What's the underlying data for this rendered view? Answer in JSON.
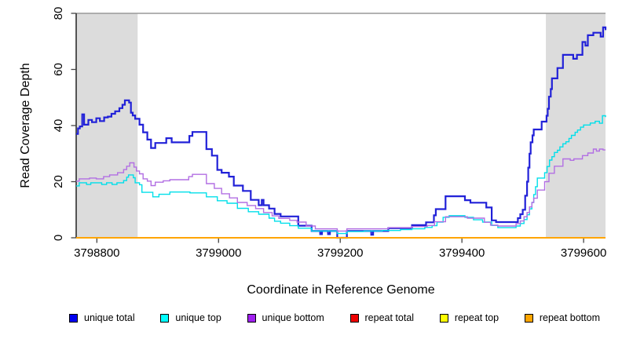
{
  "chart_data": {
    "type": "line",
    "step": true,
    "title": "",
    "xlabel": "Coordinate in Reference Genome",
    "ylabel": "Read Coverage Depth",
    "xlim": [
      3798766,
      3799636
    ],
    "ylim": [
      0,
      80
    ],
    "x_ticks": [
      "3798800",
      "3799000",
      "3799200",
      "3799400",
      "3799600"
    ],
    "x_tick_values": [
      3798800,
      3799000,
      3799200,
      3799400,
      3799600
    ],
    "y_ticks": [
      "0",
      "20",
      "40",
      "60",
      "80"
    ],
    "y_tick_values": [
      0,
      20,
      40,
      60,
      80
    ],
    "grid": false,
    "legend_position": "bottom",
    "shade_color": "#dcdcdc",
    "top_border_color": "#999999",
    "axis_color": "#000000",
    "shaded_regions": [
      {
        "x0": 3798766,
        "x1": 3798867
      },
      {
        "x0": 3799538,
        "x1": 3799636
      }
    ],
    "series": [
      {
        "name": "unique total",
        "color": "#2121d8",
        "legend_color": "#0000f0",
        "width": 2.2,
        "points": [
          [
            3798766,
            37
          ],
          [
            3798769,
            39
          ],
          [
            3798772,
            39.7
          ],
          [
            3798776,
            44
          ],
          [
            3798779,
            40.3
          ],
          [
            3798786,
            42
          ],
          [
            3798792,
            41.2
          ],
          [
            3798799,
            42.6
          ],
          [
            3798805,
            41.6
          ],
          [
            3798812,
            42.9
          ],
          [
            3798818,
            43.2
          ],
          [
            3798824,
            44.2
          ],
          [
            3798830,
            45.1
          ],
          [
            3798837,
            46.2
          ],
          [
            3798842,
            47.4
          ],
          [
            3798846,
            49
          ],
          [
            3798853,
            48.2
          ],
          [
            3798856,
            44.6
          ],
          [
            3798859,
            43.6
          ],
          [
            3798863,
            42.4
          ],
          [
            3798870,
            40.3
          ],
          [
            3798876,
            37.6
          ],
          [
            3798883,
            35
          ],
          [
            3798889,
            32
          ],
          [
            3798896,
            33.8
          ],
          [
            3798914,
            35.5
          ],
          [
            3798923,
            34
          ],
          [
            3798952,
            36.3
          ],
          [
            3798957,
            37.7
          ],
          [
            3798980,
            31.6
          ],
          [
            3798989,
            29.3
          ],
          [
            3798998,
            24.2
          ],
          [
            3799005,
            23.2
          ],
          [
            3799017,
            21.8
          ],
          [
            3799025,
            18.6
          ],
          [
            3799040,
            16.7
          ],
          [
            3799053,
            13.5
          ],
          [
            3799066,
            11.6
          ],
          [
            3799071,
            13.5
          ],
          [
            3799074,
            11.6
          ],
          [
            3799083,
            10.4
          ],
          [
            3799092,
            8.5
          ],
          [
            3799102,
            7.6
          ],
          [
            3799131,
            4.3
          ],
          [
            3799153,
            2.4
          ],
          [
            3799167,
            1.3
          ],
          [
            3799170,
            2.4
          ],
          [
            3799180,
            1.3
          ],
          [
            3799183,
            2.4
          ],
          [
            3799195,
            0
          ],
          [
            3799211,
            2.4
          ],
          [
            3799251,
            1.1
          ],
          [
            3799254,
            2.4
          ],
          [
            3799279,
            3.4
          ],
          [
            3799318,
            4.5
          ],
          [
            3799341,
            5.5
          ],
          [
            3799354,
            8
          ],
          [
            3799357,
            10.2
          ],
          [
            3799373,
            14.8
          ],
          [
            3799405,
            13.4
          ],
          [
            3799414,
            12.5
          ],
          [
            3799440,
            10.8
          ],
          [
            3799449,
            6.2
          ],
          [
            3799456,
            5.6
          ],
          [
            3799492,
            7
          ],
          [
            3799496,
            8.4
          ],
          [
            3799500,
            10
          ],
          [
            3799504,
            15
          ],
          [
            3799507,
            20
          ],
          [
            3799509,
            25
          ],
          [
            3799511,
            30
          ],
          [
            3799513,
            34
          ],
          [
            3799516,
            36.5
          ],
          [
            3799518,
            38.6
          ],
          [
            3799531,
            41.4
          ],
          [
            3799539,
            43.5
          ],
          [
            3799541,
            46
          ],
          [
            3799543,
            50.3
          ],
          [
            3799546,
            53
          ],
          [
            3799548,
            56.8
          ],
          [
            3799557,
            60.5
          ],
          [
            3799566,
            65.2
          ],
          [
            3799583,
            63.8
          ],
          [
            3799589,
            65.2
          ],
          [
            3799598,
            69.8
          ],
          [
            3799603,
            68.5
          ],
          [
            3799607,
            72.2
          ],
          [
            3799616,
            73.1
          ],
          [
            3799628,
            71.7
          ],
          [
            3799632,
            75
          ],
          [
            3799636,
            74
          ]
        ]
      },
      {
        "name": "unique top",
        "color": "#00dfea",
        "legend_color": "#00ffff",
        "width": 1.4,
        "points": [
          [
            3798766,
            18.5
          ],
          [
            3798771,
            19.6
          ],
          [
            3798783,
            19
          ],
          [
            3798790,
            19.6
          ],
          [
            3798808,
            19
          ],
          [
            3798816,
            19.6
          ],
          [
            3798825,
            19
          ],
          [
            3798833,
            19.6
          ],
          [
            3798844,
            20.4
          ],
          [
            3798849,
            21.6
          ],
          [
            3798852,
            22.4
          ],
          [
            3798860,
            21.4
          ],
          [
            3798863,
            19.6
          ],
          [
            3798870,
            18.9
          ],
          [
            3798874,
            16.2
          ],
          [
            3798892,
            14.6
          ],
          [
            3798902,
            15.5
          ],
          [
            3798920,
            16.3
          ],
          [
            3798953,
            16
          ],
          [
            3798980,
            14.6
          ],
          [
            3798998,
            13.2
          ],
          [
            3799014,
            12.3
          ],
          [
            3799031,
            10.5
          ],
          [
            3799049,
            9.3
          ],
          [
            3799066,
            8.4
          ],
          [
            3799083,
            7
          ],
          [
            3799092,
            5.9
          ],
          [
            3799102,
            5.2
          ],
          [
            3799117,
            4.3
          ],
          [
            3799131,
            3.4
          ],
          [
            3799153,
            2.4
          ],
          [
            3799195,
            1.5
          ],
          [
            3799211,
            2.2
          ],
          [
            3799239,
            2.4
          ],
          [
            3799269,
            2.6
          ],
          [
            3799299,
            2.9
          ],
          [
            3799318,
            3.2
          ],
          [
            3799339,
            3.7
          ],
          [
            3799351,
            4.3
          ],
          [
            3799359,
            5.6
          ],
          [
            3799369,
            7.3
          ],
          [
            3799379,
            7.9
          ],
          [
            3799405,
            7.3
          ],
          [
            3799419,
            6.4
          ],
          [
            3799434,
            5.6
          ],
          [
            3799449,
            4.4
          ],
          [
            3799459,
            3.6
          ],
          [
            3799489,
            4.2
          ],
          [
            3799496,
            5.1
          ],
          [
            3799502,
            6.5
          ],
          [
            3799507,
            8.2
          ],
          [
            3799511,
            10.3
          ],
          [
            3799515,
            12.6
          ],
          [
            3799518,
            15.4
          ],
          [
            3799521,
            18.2
          ],
          [
            3799524,
            21.3
          ],
          [
            3799536,
            23.2
          ],
          [
            3799540,
            25.4
          ],
          [
            3799544,
            27.7
          ],
          [
            3799548,
            28.9
          ],
          [
            3799552,
            30.4
          ],
          [
            3799557,
            31.2
          ],
          [
            3799561,
            32.4
          ],
          [
            3799566,
            33.5
          ],
          [
            3799571,
            34.2
          ],
          [
            3799576,
            35.4
          ],
          [
            3799580,
            36.5
          ],
          [
            3799586,
            37.6
          ],
          [
            3799590,
            38.4
          ],
          [
            3799595,
            39.4
          ],
          [
            3799600,
            40.2
          ],
          [
            3799611,
            40.9
          ],
          [
            3799619,
            41.5
          ],
          [
            3799626,
            40.8
          ],
          [
            3799631,
            43.5
          ],
          [
            3799636,
            43
          ]
        ]
      },
      {
        "name": "unique bottom",
        "color": "#b26fe3",
        "legend_color": "#a020f0",
        "width": 1.4,
        "points": [
          [
            3798766,
            20.2
          ],
          [
            3798771,
            21
          ],
          [
            3798788,
            21.3
          ],
          [
            3798799,
            21
          ],
          [
            3798811,
            21.8
          ],
          [
            3798821,
            22.4
          ],
          [
            3798834,
            23.2
          ],
          [
            3798844,
            24.3
          ],
          [
            3798849,
            25.5
          ],
          [
            3798854,
            26.7
          ],
          [
            3798861,
            25.2
          ],
          [
            3798865,
            23.8
          ],
          [
            3798870,
            22.8
          ],
          [
            3798876,
            21
          ],
          [
            3798883,
            20.2
          ],
          [
            3798889,
            18.6
          ],
          [
            3798896,
            19.8
          ],
          [
            3798909,
            20.3
          ],
          [
            3798920,
            20.7
          ],
          [
            3798951,
            21.8
          ],
          [
            3798957,
            22.6
          ],
          [
            3798980,
            19.3
          ],
          [
            3798993,
            17.6
          ],
          [
            3799005,
            15.7
          ],
          [
            3799018,
            14.2
          ],
          [
            3799031,
            12.6
          ],
          [
            3799047,
            11.5
          ],
          [
            3799061,
            10.4
          ],
          [
            3799074,
            9
          ],
          [
            3799088,
            7.8
          ],
          [
            3799099,
            6.9
          ],
          [
            3799117,
            6.2
          ],
          [
            3799129,
            5.6
          ],
          [
            3799144,
            4.2
          ],
          [
            3799159,
            3.2
          ],
          [
            3799195,
            2.4
          ],
          [
            3799211,
            3.2
          ],
          [
            3799279,
            3.6
          ],
          [
            3799318,
            4
          ],
          [
            3799343,
            4.4
          ],
          [
            3799355,
            5.7
          ],
          [
            3799373,
            7.5
          ],
          [
            3799409,
            7
          ],
          [
            3799437,
            5.5
          ],
          [
            3799447,
            4.5
          ],
          [
            3799459,
            4.2
          ],
          [
            3799489,
            5
          ],
          [
            3799496,
            6
          ],
          [
            3799502,
            7.5
          ],
          [
            3799507,
            9
          ],
          [
            3799511,
            11
          ],
          [
            3799515,
            12.6
          ],
          [
            3799518,
            14.1
          ],
          [
            3799524,
            17
          ],
          [
            3799536,
            20
          ],
          [
            3799543,
            23
          ],
          [
            3799552,
            25.5
          ],
          [
            3799566,
            28.1
          ],
          [
            3799578,
            27.6
          ],
          [
            3799584,
            28.1
          ],
          [
            3799598,
            29.3
          ],
          [
            3799607,
            30.2
          ],
          [
            3799616,
            31.6
          ],
          [
            3799621,
            30.9
          ],
          [
            3799626,
            31.6
          ],
          [
            3799632,
            31.3
          ],
          [
            3799636,
            31.3
          ]
        ]
      },
      {
        "name": "repeat total",
        "color": "#ee0000",
        "legend_color": "#ee0000",
        "width": 1.4,
        "points": [
          [
            3798766,
            0
          ],
          [
            3799636,
            0
          ]
        ]
      },
      {
        "name": "repeat top",
        "color": "#ffff00",
        "legend_color": "#ffff00",
        "width": 1.4,
        "points": [
          [
            3798766,
            0
          ],
          [
            3799636,
            0
          ]
        ]
      },
      {
        "name": "repeat bottom",
        "color": "#ffa500",
        "legend_color": "#ffa500",
        "width": 2,
        "points": [
          [
            3798766,
            0
          ],
          [
            3799636,
            0
          ]
        ]
      }
    ]
  }
}
